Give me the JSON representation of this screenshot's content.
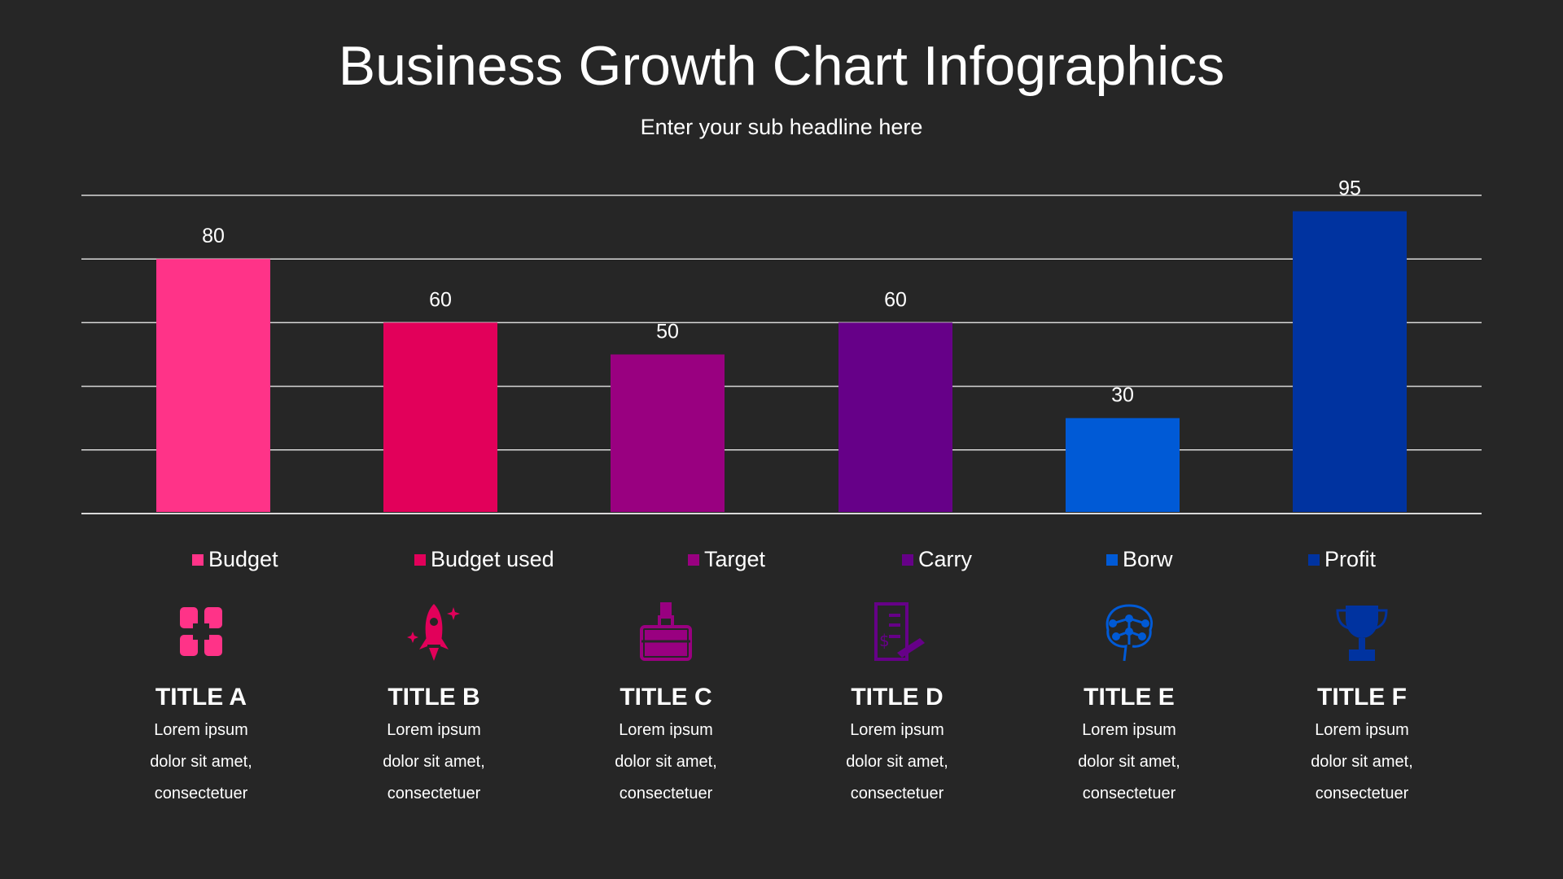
{
  "title": "Business Growth Chart Infographics",
  "subtitle": "Enter your sub headline here",
  "chart_data": {
    "type": "bar",
    "categories": [
      "Budget",
      "Budget used",
      "Target",
      "Carry",
      "Borw",
      "Profit"
    ],
    "values": [
      80,
      60,
      50,
      60,
      30,
      95
    ],
    "colors": [
      "#ff3388",
      "#e2005a",
      "#990080",
      "#660088",
      "#005ad6",
      "#0033a0"
    ],
    "ylim": [
      0,
      100
    ],
    "grid": true,
    "data_labels": true,
    "legend_placement": "bottom"
  },
  "items": [
    {
      "icon": "hands-teamwork-icon",
      "title": "TITLE A",
      "lines": [
        "Lorem ipsum",
        "dolor sit amet,",
        "consectetuer"
      ]
    },
    {
      "icon": "rocket-icon",
      "title": "TITLE B",
      "lines": [
        "Lorem ipsum",
        "dolor sit amet,",
        "consectetuer"
      ]
    },
    {
      "icon": "briefcase-icon",
      "title": "TITLE C",
      "lines": [
        "Lorem ipsum",
        "dolor sit amet,",
        "consectetuer"
      ]
    },
    {
      "icon": "invoice-icon",
      "title": "TITLE D",
      "lines": [
        "Lorem ipsum",
        "dolor sit amet,",
        "consectetuer"
      ]
    },
    {
      "icon": "brain-network-icon",
      "title": "TITLE E",
      "lines": [
        "Lorem ipsum",
        "dolor sit amet,",
        "consectetuer"
      ]
    },
    {
      "icon": "trophy-icon",
      "title": "TITLE F",
      "lines": [
        "Lorem ipsum",
        "dolor sit amet,",
        "consectetuer"
      ]
    }
  ]
}
